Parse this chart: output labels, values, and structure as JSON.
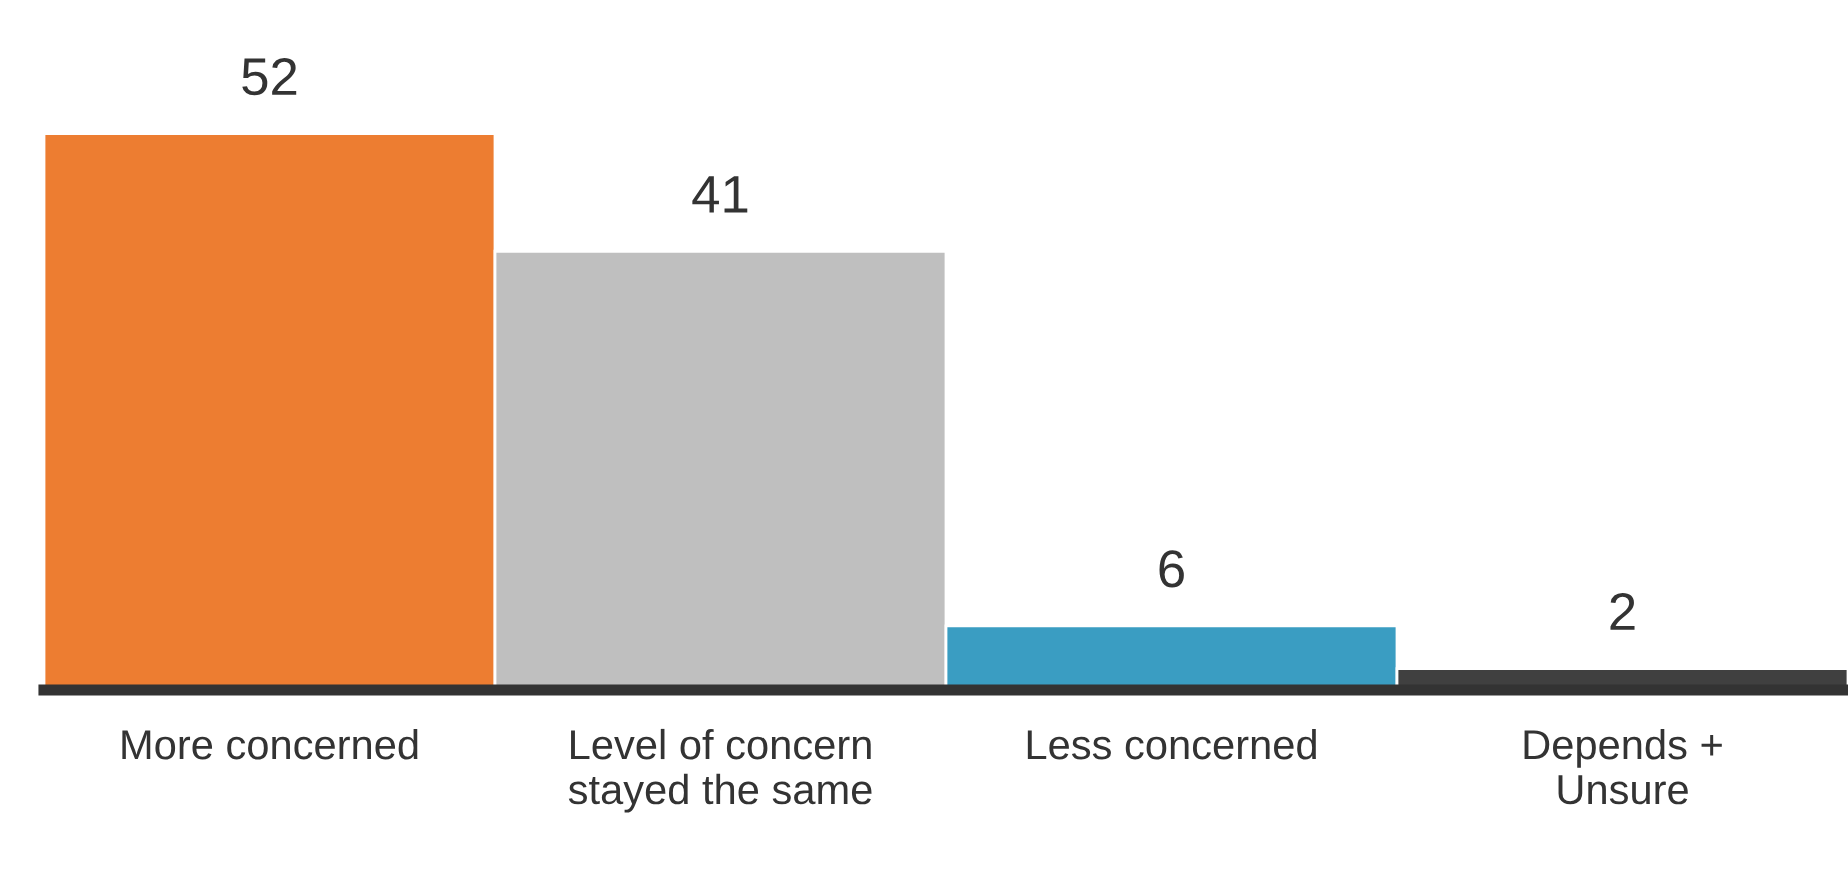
{
  "chart_data": {
    "type": "bar",
    "categories": [
      "More concerned",
      "Level of concern\nstayed the same",
      "Less concerned",
      "Depends +\nUnsure"
    ],
    "values": [
      52,
      41,
      6,
      2
    ],
    "colors": [
      "#ed7d31",
      "#bfbfbf",
      "#3a9dc2",
      "#404040"
    ],
    "data_labels": true,
    "grid": false,
    "legend": false
  }
}
